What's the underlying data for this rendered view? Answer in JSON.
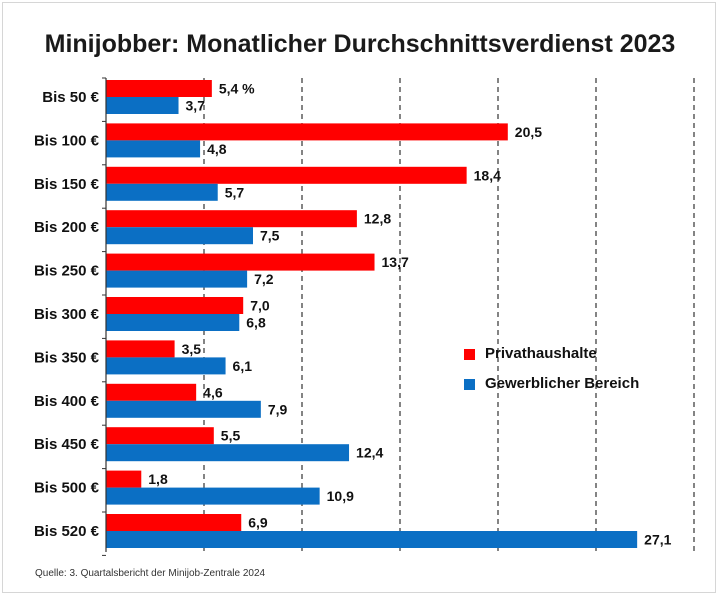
{
  "title": "Minijobber: Monatlicher Durchschnittsverdienst 2023",
  "source": "Quelle: 3. Quartalsbericht der Minijob-Zentrale 2024",
  "colors": {
    "privat": "#ff0000",
    "gewerblich": "#0b6fc4"
  },
  "chart_data": {
    "type": "bar",
    "orientation": "horizontal",
    "title": "Minijobber: Monatlicher Durchschnittsverdienst 2023",
    "categories": [
      "Bis 50 €",
      "Bis 100 €",
      "Bis 150 €",
      "Bis 200 €",
      "Bis 250 €",
      "Bis 300 €",
      "Bis 350 €",
      "Bis 400 €",
      "Bis 450 €",
      "Bis 500 €",
      "Bis 520 €"
    ],
    "series": [
      {
        "name": "Privathaushalte",
        "values": [
          5.4,
          20.5,
          18.4,
          12.8,
          13.7,
          7.0,
          3.5,
          4.6,
          5.5,
          1.8,
          6.9
        ],
        "labels": [
          "5,4 %",
          "20,5",
          "18,4",
          "12,8",
          "13,7",
          "7,0",
          "3,5",
          "4,6",
          "5,5",
          "1,8",
          "6,9"
        ]
      },
      {
        "name": "Gewerblicher Bereich",
        "values": [
          3.7,
          4.8,
          5.7,
          7.5,
          7.2,
          6.8,
          6.1,
          7.9,
          12.4,
          10.9,
          27.1
        ],
        "labels": [
          "3,7",
          "4,8",
          "5,7",
          "7,5",
          "7,2",
          "6,8",
          "6,1",
          "7,9",
          "12,4",
          "10,9",
          "27,1"
        ]
      }
    ],
    "xlim": [
      0,
      30
    ],
    "grid": "vertical dashed every 5",
    "legend_position": "right-center"
  }
}
